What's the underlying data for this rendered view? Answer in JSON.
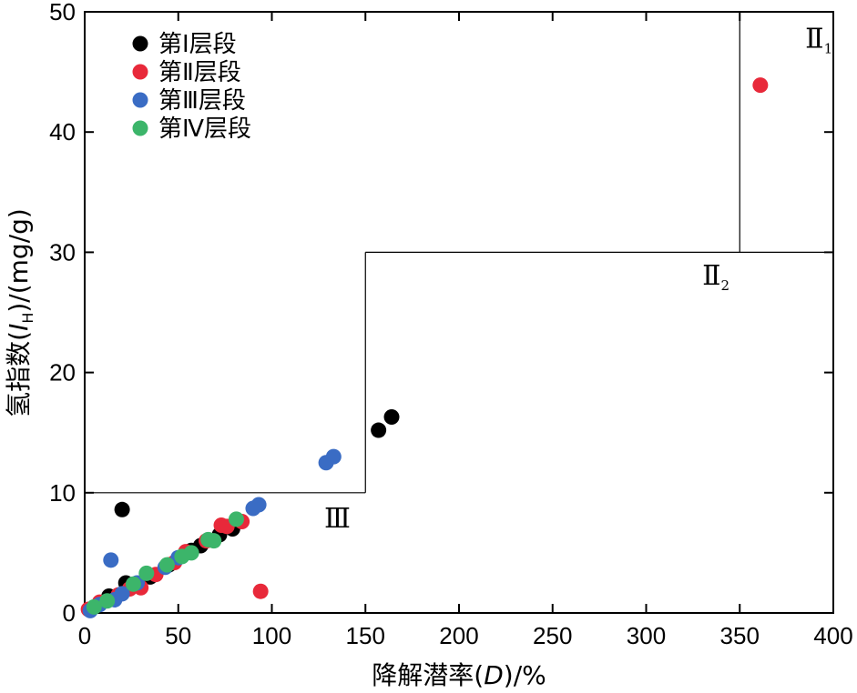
{
  "chart_data": {
    "type": "scatter",
    "xlabel": "降解潜率(D)/%",
    "ylabel": "氢指数(I_H)/(mg/g)",
    "xlabel_parts": {
      "pre": "降解潜率(",
      "var": "D",
      "post": ")/%"
    },
    "ylabel_parts": {
      "pre": "氢指数(",
      "var": "I",
      "sub": "H",
      "post": ")/(mg/g)"
    },
    "xlim": [
      0,
      400
    ],
    "ylim": [
      0,
      50
    ],
    "x_ticks": [
      "0",
      "50",
      "100",
      "150",
      "200",
      "250",
      "300",
      "350",
      "400"
    ],
    "y_ticks": [
      "0",
      "10",
      "20",
      "30",
      "40",
      "50"
    ],
    "grid": false,
    "legend_position": "top-left",
    "regions": [
      {
        "main": "Ⅱ",
        "sub": "1",
        "x_min": 350,
        "x_max": 400,
        "y_min": 30,
        "y_max": 50,
        "label_at": [
          385,
          47
        ]
      },
      {
        "main": "Ⅱ",
        "sub": "2",
        "x_min": 150,
        "x_max": 400,
        "y_min": 10,
        "y_max": 30,
        "label_at": [
          330,
          27.3
        ]
      },
      {
        "main": "Ⅲ",
        "sub": "",
        "x_min": 0,
        "x_max": 150,
        "y_min": 0,
        "y_max": 10,
        "label_at": [
          128,
          7.1
        ]
      }
    ],
    "series": [
      {
        "name": "第Ⅰ层段",
        "color": "#000000",
        "points": [
          [
            20,
            8.6
          ],
          [
            22,
            2.5
          ],
          [
            13,
            1.4
          ],
          [
            35,
            3.0
          ],
          [
            45,
            4.0
          ],
          [
            57,
            5.2
          ],
          [
            62,
            5.6
          ],
          [
            72,
            6.5
          ],
          [
            79,
            7.0
          ],
          [
            157,
            15.2
          ],
          [
            164,
            16.3
          ]
        ]
      },
      {
        "name": "第Ⅱ层段",
        "color": "#e8293a",
        "points": [
          [
            2,
            0.3
          ],
          [
            8,
            0.9
          ],
          [
            18,
            1.5
          ],
          [
            24,
            2.0
          ],
          [
            30,
            2.1
          ],
          [
            38,
            3.2
          ],
          [
            48,
            4.2
          ],
          [
            54,
            5.1
          ],
          [
            65,
            6.0
          ],
          [
            73,
            7.3
          ],
          [
            76,
            7.2
          ],
          [
            84,
            7.6
          ],
          [
            94,
            1.8
          ],
          [
            361,
            43.9
          ]
        ]
      },
      {
        "name": "第Ⅲ层段",
        "color": "#3a6cc4",
        "points": [
          [
            3,
            0.2
          ],
          [
            8,
            0.7
          ],
          [
            14,
            4.4
          ],
          [
            16,
            1.1
          ],
          [
            20,
            1.6
          ],
          [
            28,
            2.5
          ],
          [
            43,
            3.8
          ],
          [
            50,
            4.6
          ],
          [
            90,
            8.7
          ],
          [
            93,
            9.0
          ],
          [
            129,
            12.5
          ],
          [
            133,
            13.0
          ]
        ]
      },
      {
        "name": "第Ⅳ层段",
        "color": "#3cb56a",
        "points": [
          [
            5,
            0.5
          ],
          [
            12,
            1.0
          ],
          [
            26,
            2.4
          ],
          [
            33,
            3.3
          ],
          [
            44,
            4.0
          ],
          [
            52,
            4.7
          ],
          [
            57,
            5.0
          ],
          [
            66,
            6.1
          ],
          [
            69,
            6.0
          ],
          [
            81,
            7.8
          ]
        ]
      }
    ]
  }
}
